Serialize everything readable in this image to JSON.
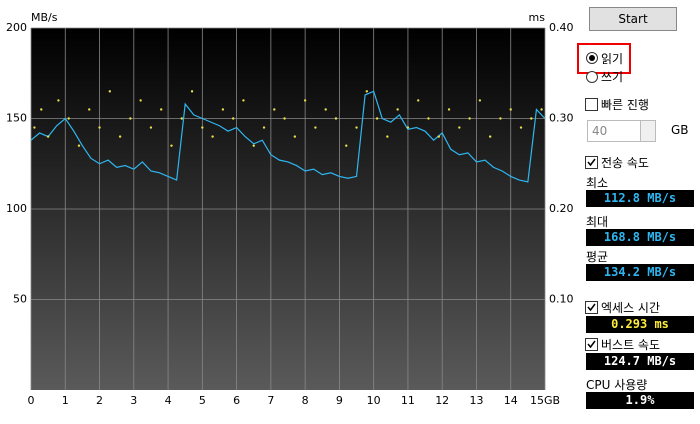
{
  "chart_data": {
    "type": "line",
    "y_label": "MB/s",
    "y2_label": "ms",
    "xlim": [
      0,
      15
    ],
    "xticks": [
      0,
      1,
      2,
      3,
      4,
      5,
      6,
      7,
      8,
      9,
      10,
      11,
      12,
      13,
      14,
      {
        "value": 15,
        "label": "15GB"
      }
    ],
    "ylim": [
      0,
      200
    ],
    "yticks": [
      50,
      100,
      150,
      200
    ],
    "y2lim": [
      0,
      0.4
    ],
    "y2ticks": [
      {
        "value": 0.1,
        "label": "0.10"
      },
      {
        "value": 0.2,
        "label": "0.20"
      },
      {
        "value": 0.3,
        "label": "0.30"
      },
      {
        "value": 0.4,
        "label": "0.40"
      }
    ],
    "grid": true,
    "series": [
      {
        "name": "전송 속도",
        "color": "#2fb6f0",
        "mode": "line",
        "x": [
          0,
          0.25,
          0.5,
          0.75,
          1,
          1.25,
          1.5,
          1.75,
          2,
          2.25,
          2.5,
          2.75,
          3,
          3.25,
          3.5,
          3.75,
          4,
          4.25,
          4.5,
          4.75,
          5,
          5.25,
          5.5,
          5.75,
          6,
          6.25,
          6.5,
          6.75,
          7,
          7.25,
          7.5,
          7.75,
          8,
          8.25,
          8.5,
          8.75,
          9,
          9.25,
          9.5,
          9.75,
          10,
          10.25,
          10.5,
          10.75,
          11,
          11.25,
          11.5,
          11.75,
          12,
          12.25,
          12.5,
          12.75,
          13,
          13.25,
          13.5,
          13.75,
          14,
          14.25,
          14.5,
          14.75,
          15
        ],
        "values": [
          138,
          142,
          140,
          146,
          150,
          143,
          135,
          128,
          125,
          127,
          123,
          124,
          122,
          126,
          121,
          120,
          118,
          116,
          158,
          152,
          150,
          148,
          146,
          143,
          145,
          140,
          136,
          138,
          130,
          127,
          126,
          124,
          121,
          122,
          119,
          120,
          118,
          117,
          118,
          163,
          165,
          150,
          148,
          152,
          144,
          145,
          143,
          138,
          142,
          133,
          130,
          131,
          126,
          127,
          123,
          121,
          118,
          116,
          115,
          155,
          150
        ]
      },
      {
        "name": "엑세스 시간",
        "color": "#e8e04a",
        "mode": "markers",
        "axis": "y2",
        "x": [
          0.1,
          0.3,
          0.5,
          0.8,
          1.1,
          1.4,
          1.7,
          2.0,
          2.3,
          2.6,
          2.9,
          3.2,
          3.5,
          3.8,
          4.1,
          4.4,
          4.7,
          5.0,
          5.3,
          5.6,
          5.9,
          6.2,
          6.5,
          6.8,
          7.1,
          7.4,
          7.7,
          8.0,
          8.3,
          8.6,
          8.9,
          9.2,
          9.5,
          9.8,
          10.1,
          10.4,
          10.7,
          11.0,
          11.3,
          11.6,
          11.9,
          12.2,
          12.5,
          12.8,
          13.1,
          13.4,
          13.7,
          14.0,
          14.3,
          14.6,
          14.9
        ],
        "values": [
          0.29,
          0.31,
          0.28,
          0.32,
          0.3,
          0.27,
          0.31,
          0.29,
          0.33,
          0.28,
          0.3,
          0.32,
          0.29,
          0.31,
          0.27,
          0.3,
          0.33,
          0.29,
          0.28,
          0.31,
          0.3,
          0.32,
          0.27,
          0.29,
          0.31,
          0.3,
          0.28,
          0.32,
          0.29,
          0.31,
          0.3,
          0.27,
          0.29,
          0.33,
          0.3,
          0.28,
          0.31,
          0.29,
          0.32,
          0.3,
          0.28,
          0.31,
          0.29,
          0.3,
          0.32,
          0.28,
          0.3,
          0.31,
          0.29,
          0.3,
          0.31
        ]
      }
    ]
  },
  "panel": {
    "start": "Start",
    "read": "읽기",
    "write": "쓰기",
    "quick": "빠른 진행",
    "size": "40",
    "size_unit": "GB",
    "min_label": "최소",
    "min": "112.8 MB/s",
    "max_label": "최대",
    "max": "168.8 MB/s",
    "avg_label": "평균",
    "avg": "134.2 MB/s",
    "access": "0.293 ms",
    "burst_label": "버스트 속도",
    "burst": "124.7 MB/s",
    "cpu_label": "CPU 사용량",
    "cpu": "1.9%"
  }
}
